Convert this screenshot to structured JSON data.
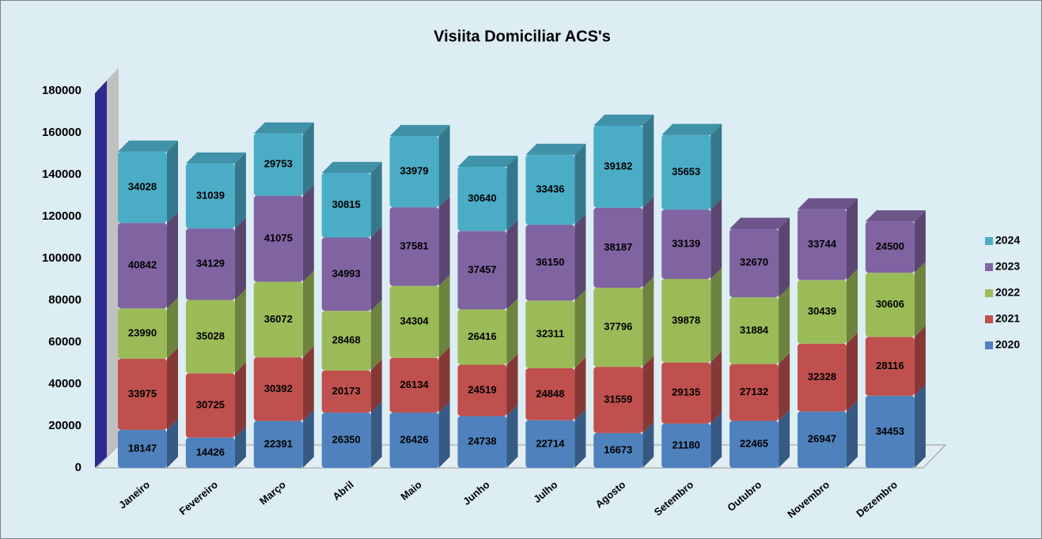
{
  "chart_data": {
    "type": "bar",
    "stacked": true,
    "title": "Visiita Domiciliar ACS's",
    "categories": [
      "Janeiro",
      "Fevereiro",
      "Março",
      "Abril",
      "Maio",
      "Junho",
      "Julho",
      "Agosto",
      "Setembro",
      "Outubro",
      "Novembro",
      "Dezembro"
    ],
    "series": [
      {
        "name": "2020",
        "color": "#4f81bd",
        "values": [
          18147,
          14426,
          22391,
          26350,
          26426,
          24738,
          22714,
          16673,
          21180,
          22465,
          26947,
          34453
        ]
      },
      {
        "name": "2021",
        "color": "#c0504d",
        "values": [
          33975,
          30725,
          30392,
          20173,
          26134,
          24519,
          24848,
          31559,
          29135,
          27132,
          32328,
          28116
        ]
      },
      {
        "name": "2022",
        "color": "#9bbb59",
        "values": [
          23990,
          35028,
          36072,
          28468,
          34304,
          26416,
          32311,
          37796,
          39878,
          31884,
          30439,
          30606
        ]
      },
      {
        "name": "2023",
        "color": "#8064a2",
        "values": [
          40842,
          34129,
          41075,
          34993,
          37581,
          37457,
          36150,
          38187,
          33139,
          32670,
          33744,
          24500
        ]
      },
      {
        "name": "2024",
        "color": "#4bacc6",
        "values": [
          34028,
          31039,
          29753,
          30815,
          33979,
          30640,
          33436,
          39182,
          35653,
          null,
          null,
          null
        ]
      }
    ],
    "ylim": [
      0,
      180000
    ],
    "yticks": [
      0,
      20000,
      40000,
      60000,
      80000,
      100000,
      120000,
      140000,
      160000,
      180000
    ],
    "grid": false,
    "legend": "right"
  }
}
